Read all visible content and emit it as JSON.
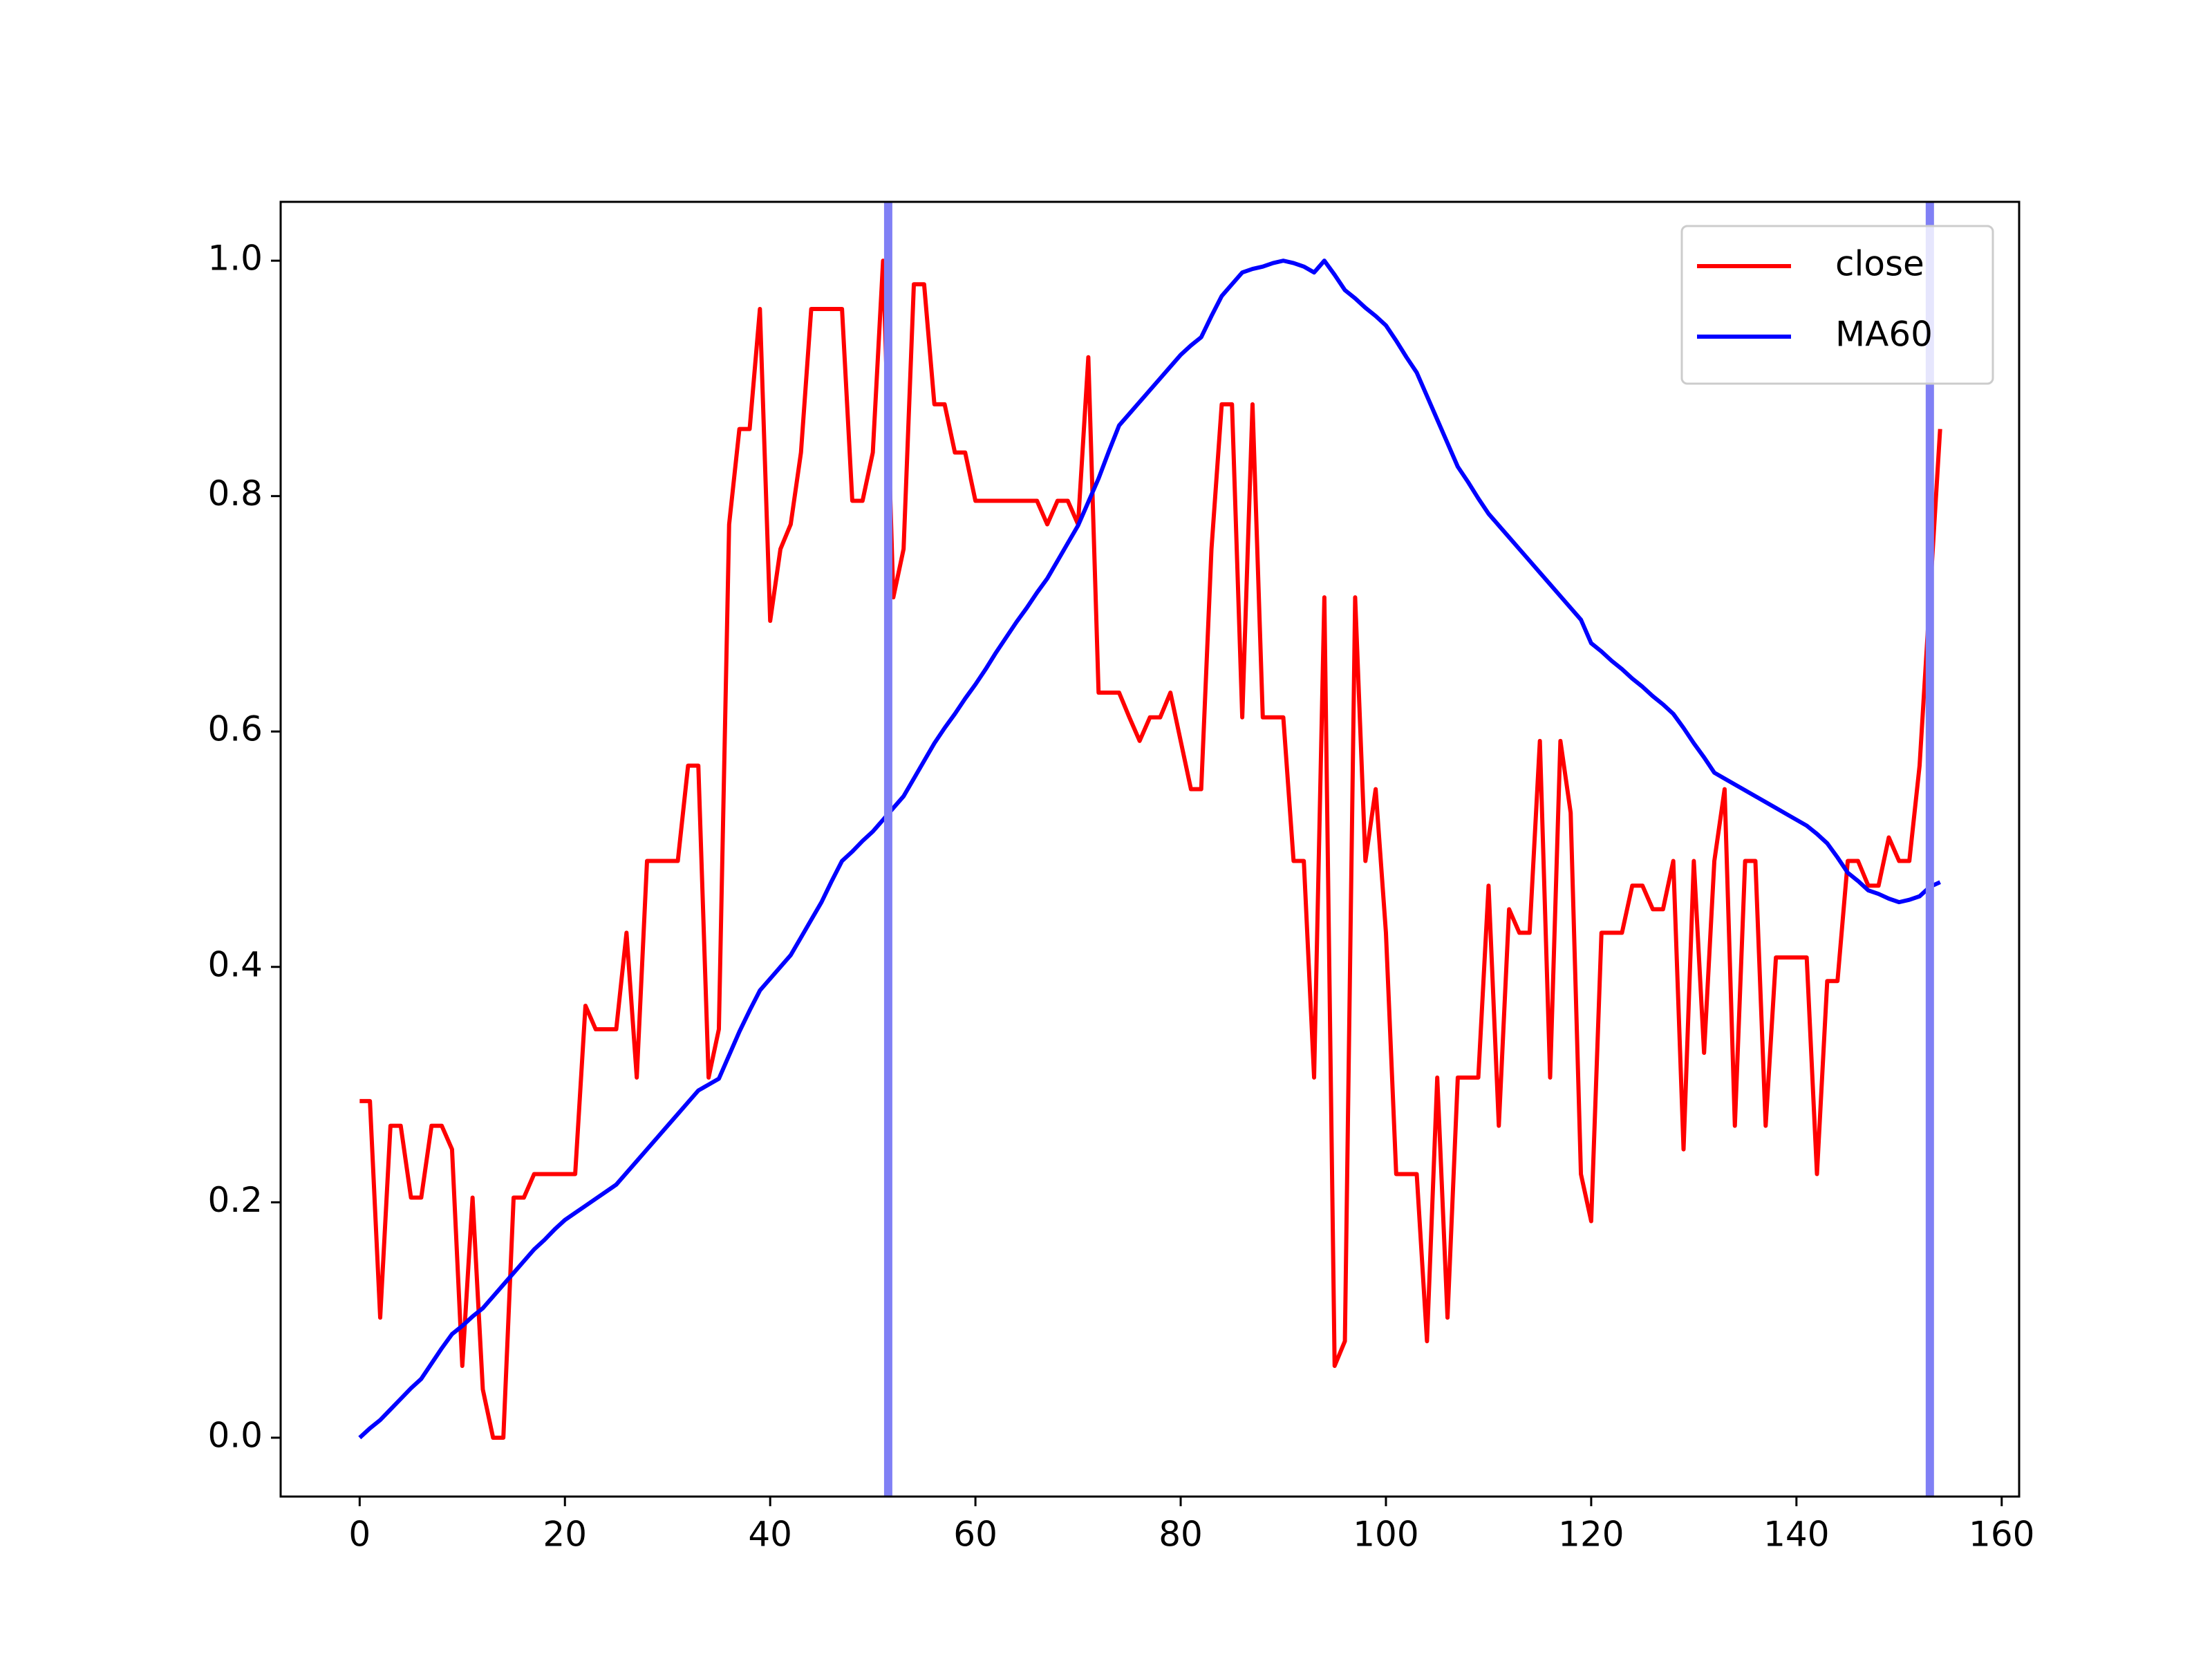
{
  "chart_data": {
    "type": "line",
    "x": [
      0,
      1,
      2,
      3,
      4,
      5,
      6,
      7,
      8,
      9,
      10,
      11,
      12,
      13,
      14,
      15,
      16,
      17,
      18,
      19,
      20,
      21,
      22,
      23,
      24,
      25,
      26,
      27,
      28,
      29,
      30,
      31,
      32,
      33,
      34,
      35,
      36,
      37,
      38,
      39,
      40,
      41,
      42,
      43,
      44,
      45,
      46,
      47,
      48,
      49,
      50,
      51,
      52,
      53,
      54,
      55,
      56,
      57,
      58,
      59,
      60,
      61,
      62,
      63,
      64,
      65,
      66,
      67,
      68,
      69,
      70,
      71,
      72,
      73,
      74,
      75,
      76,
      77,
      78,
      79,
      80,
      81,
      82,
      83,
      84,
      85,
      86,
      87,
      88,
      89,
      90,
      91,
      92,
      93,
      94,
      95,
      96,
      97,
      98,
      99,
      100,
      101,
      102,
      103,
      104,
      105,
      106,
      107,
      108,
      109,
      110,
      111,
      112,
      113,
      114,
      115,
      116,
      117,
      118,
      119,
      120,
      121,
      122,
      123,
      124,
      125,
      126,
      127,
      128,
      129,
      130,
      131,
      132,
      133,
      134,
      135,
      136,
      137,
      138,
      139,
      140,
      141,
      142,
      143,
      144,
      145,
      146,
      147,
      148,
      149,
      150,
      151,
      152,
      153,
      154
    ],
    "series": [
      {
        "name": "close",
        "color": "#ff0000",
        "values": [
          0.286,
          0.286,
          0.102,
          0.265,
          0.265,
          0.204,
          0.204,
          0.265,
          0.265,
          0.245,
          0.061,
          0.204,
          0.041,
          0.0,
          0.0,
          0.204,
          0.204,
          0.224,
          0.224,
          0.224,
          0.224,
          0.224,
          0.367,
          0.347,
          0.347,
          0.347,
          0.429,
          0.306,
          0.49,
          0.49,
          0.49,
          0.49,
          0.571,
          0.571,
          0.306,
          0.347,
          0.776,
          0.857,
          0.857,
          0.959,
          0.694,
          0.755,
          0.776,
          0.837,
          0.959,
          0.959,
          0.959,
          0.959,
          0.796,
          0.796,
          0.837,
          1.0,
          0.714,
          0.755,
          0.98,
          0.98,
          0.878,
          0.878,
          0.837,
          0.837,
          0.796,
          0.796,
          0.796,
          0.796,
          0.796,
          0.796,
          0.796,
          0.776,
          0.796,
          0.796,
          0.776,
          0.918,
          0.633,
          0.633,
          0.633,
          0.612,
          0.592,
          0.612,
          0.612,
          0.633,
          0.592,
          0.551,
          0.551,
          0.755,
          0.878,
          0.878,
          0.612,
          0.878,
          0.612,
          0.612,
          0.612,
          0.49,
          0.49,
          0.306,
          0.714,
          0.061,
          0.082,
          0.714,
          0.49,
          0.551,
          0.429,
          0.224,
          0.224,
          0.224,
          0.082,
          0.306,
          0.102,
          0.306,
          0.306,
          0.306,
          0.469,
          0.265,
          0.449,
          0.429,
          0.429,
          0.592,
          0.306,
          0.592,
          0.531,
          0.224,
          0.184,
          0.429,
          0.429,
          0.429,
          0.469,
          0.469,
          0.449,
          0.449,
          0.49,
          0.245,
          0.49,
          0.327,
          0.49,
          0.551,
          0.265,
          0.49,
          0.49,
          0.265,
          0.408,
          0.408,
          0.408,
          0.408,
          0.224,
          0.388,
          0.388,
          0.49,
          0.49,
          0.469,
          0.469,
          0.51,
          0.49,
          0.49,
          0.571,
          0.714,
          0.857
        ]
      },
      {
        "name": "MA60",
        "color": "#0000ff",
        "values": [
          0,
          0.008,
          0.015,
          0.024,
          0.033,
          0.042,
          0.05,
          0.063,
          0.076,
          0.088,
          0.095,
          0.103,
          0.11,
          0.12,
          0.13,
          0.14,
          0.15,
          0.16,
          0.168,
          0.177,
          0.185,
          0.191,
          0.197,
          0.203,
          0.209,
          0.215,
          0.225,
          0.235,
          0.245,
          0.255,
          0.265,
          0.275,
          0.285,
          0.295,
          0.3,
          0.305,
          0.325,
          0.345,
          0.363,
          0.38,
          0.39,
          0.4,
          0.41,
          0.425,
          0.44,
          0.455,
          0.473,
          0.49,
          0.498,
          0.507,
          0.515,
          0.525,
          0.535,
          0.545,
          0.56,
          0.575,
          0.59,
          0.603,
          0.615,
          0.628,
          0.64,
          0.653,
          0.667,
          0.68,
          0.693,
          0.705,
          0.718,
          0.73,
          0.745,
          0.76,
          0.775,
          0.795,
          0.815,
          0.838,
          0.86,
          0.87,
          0.88,
          0.89,
          0.9,
          0.91,
          0.92,
          0.928,
          0.935,
          0.953,
          0.97,
          0.98,
          0.99,
          0.993,
          0.995,
          0.998,
          1.0,
          0.998,
          0.995,
          0.99,
          1.0,
          0.988,
          0.975,
          0.968,
          0.96,
          0.953,
          0.945,
          0.932,
          0.918,
          0.905,
          0.885,
          0.865,
          0.845,
          0.825,
          0.812,
          0.798,
          0.785,
          0.775,
          0.765,
          0.755,
          0.745,
          0.735,
          0.725,
          0.715,
          0.705,
          0.695,
          0.675,
          0.668,
          0.66,
          0.653,
          0.645,
          0.638,
          0.63,
          0.623,
          0.615,
          0.603,
          0.59,
          0.578,
          0.565,
          0.56,
          0.555,
          0.55,
          0.545,
          0.54,
          0.535,
          0.53,
          0.525,
          0.52,
          0.513,
          0.505,
          0.493,
          0.48,
          0.473,
          0.465,
          0.462,
          0.458,
          0.455,
          0.457,
          0.46,
          0.468,
          0.472
        ]
      }
    ],
    "vlines": [
      51.5,
      153
    ],
    "vline_color": "#8080f5",
    "xlim": [
      -7.7,
      161.7
    ],
    "xticks": [
      0,
      20,
      40,
      60,
      80,
      100,
      120,
      140,
      160
    ],
    "ylim": [
      -0.05,
      1.05
    ],
    "yticks": [
      {
        "value": 0,
        "label": "0.0"
      },
      0.2,
      0.4,
      0.6,
      0.8,
      {
        "value": 1,
        "label": "1.0"
      }
    ],
    "legend": "upper right",
    "grid": false
  }
}
